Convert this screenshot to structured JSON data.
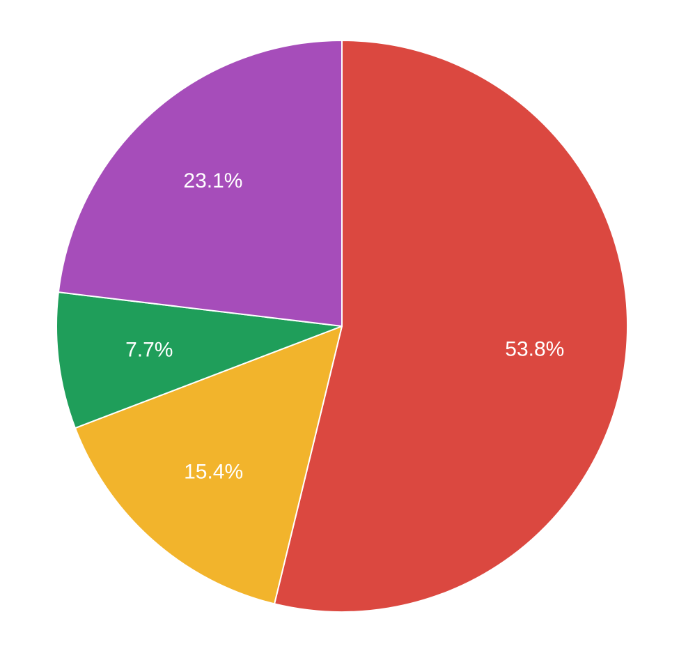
{
  "chart_data": {
    "type": "pie",
    "start_angle_deg": 0,
    "direction": "clockwise",
    "slices": [
      {
        "value": 53.8,
        "label": "53.8%",
        "color": "#DB4840"
      },
      {
        "value": 15.4,
        "label": "15.4%",
        "color": "#F2B42C"
      },
      {
        "value": 7.7,
        "label": "7.7%",
        "color": "#1F9E5A"
      },
      {
        "value": 23.1,
        "label": "23.1%",
        "color": "#A64DBA"
      }
    ],
    "legend": "none",
    "title": ""
  }
}
